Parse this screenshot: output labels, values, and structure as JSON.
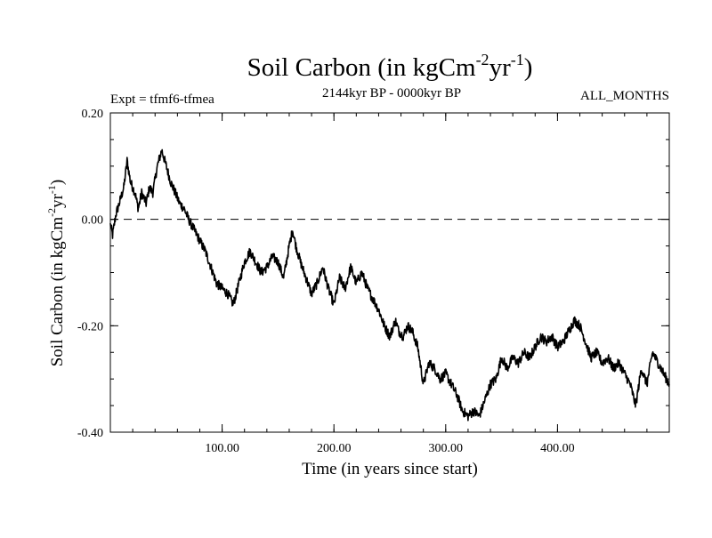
{
  "chart_data": {
    "type": "line",
    "title": {
      "prefix": "Soil Carbon (in kgCm",
      "sup1": "-2",
      "mid": "yr",
      "sup2": "-1",
      "suffix": ")"
    },
    "subtitle_left": "Expt = tfmf6-tfmea",
    "subtitle_center": "2144kyr BP - 0000kyr BP",
    "subtitle_right": "ALL_MONTHS",
    "xlabel": "Time (in years since start)",
    "ylabel": {
      "prefix": "Soil Carbon (in kgCm",
      "sup1": "-2",
      "mid": "yr",
      "sup2": "-1",
      "suffix": ")"
    },
    "xlim": [
      0,
      500
    ],
    "ylim": [
      -0.4,
      0.2
    ],
    "xticks": [
      {
        "value": 100,
        "label": "100.00"
      },
      {
        "value": 200,
        "label": "200.00"
      },
      {
        "value": 300,
        "label": "300.00"
      },
      {
        "value": 400,
        "label": "400.00"
      }
    ],
    "yticks": [
      {
        "value": 0.2,
        "label": "0.20"
      },
      {
        "value": 0.0,
        "label": "0.00"
      },
      {
        "value": -0.2,
        "label": "-0.20"
      },
      {
        "value": -0.4,
        "label": "-0.40"
      }
    ],
    "x_minor_step": 20,
    "y_minor_step": 0.05,
    "reference_line": {
      "y": 0.0,
      "style": "dashed"
    },
    "series": [
      {
        "name": "Soil Carbon",
        "x": [
          0,
          2,
          5,
          8,
          12,
          15,
          18,
          22,
          25,
          28,
          32,
          35,
          38,
          42,
          46,
          50,
          54,
          58,
          62,
          66,
          70,
          75,
          80,
          85,
          90,
          95,
          100,
          105,
          110,
          115,
          120,
          125,
          130,
          135,
          140,
          145,
          150,
          155,
          160,
          163,
          166,
          170,
          175,
          180,
          185,
          190,
          195,
          200,
          205,
          210,
          215,
          220,
          225,
          230,
          235,
          240,
          245,
          250,
          255,
          258,
          262,
          266,
          270,
          275,
          280,
          285,
          290,
          295,
          300,
          305,
          310,
          315,
          320,
          325,
          330,
          335,
          340,
          345,
          350,
          355,
          360,
          365,
          370,
          375,
          380,
          385,
          390,
          395,
          400,
          405,
          410,
          415,
          420,
          425,
          430,
          435,
          440,
          445,
          450,
          455,
          460,
          465,
          470,
          475,
          480,
          485,
          490,
          495,
          500
        ],
        "y": [
          -0.01,
          -0.03,
          0.01,
          0.03,
          0.06,
          0.11,
          0.07,
          0.05,
          0.02,
          0.05,
          0.03,
          0.06,
          0.05,
          0.1,
          0.13,
          0.1,
          0.07,
          0.05,
          0.03,
          0.02,
          0.0,
          -0.02,
          -0.04,
          -0.06,
          -0.09,
          -0.12,
          -0.13,
          -0.14,
          -0.16,
          -0.12,
          -0.08,
          -0.06,
          -0.08,
          -0.1,
          -0.09,
          -0.07,
          -0.08,
          -0.11,
          -0.05,
          -0.02,
          -0.05,
          -0.08,
          -0.11,
          -0.14,
          -0.12,
          -0.09,
          -0.13,
          -0.16,
          -0.11,
          -0.13,
          -0.09,
          -0.12,
          -0.1,
          -0.13,
          -0.15,
          -0.17,
          -0.2,
          -0.22,
          -0.19,
          -0.21,
          -0.22,
          -0.2,
          -0.21,
          -0.24,
          -0.31,
          -0.27,
          -0.28,
          -0.3,
          -0.29,
          -0.31,
          -0.33,
          -0.36,
          -0.37,
          -0.36,
          -0.37,
          -0.34,
          -0.31,
          -0.3,
          -0.26,
          -0.28,
          -0.26,
          -0.27,
          -0.25,
          -0.26,
          -0.24,
          -0.22,
          -0.23,
          -0.22,
          -0.24,
          -0.23,
          -0.21,
          -0.19,
          -0.2,
          -0.23,
          -0.26,
          -0.25,
          -0.27,
          -0.26,
          -0.28,
          -0.27,
          -0.29,
          -0.31,
          -0.35,
          -0.28,
          -0.31,
          -0.25,
          -0.27,
          -0.29,
          -0.31
        ]
      }
    ]
  }
}
